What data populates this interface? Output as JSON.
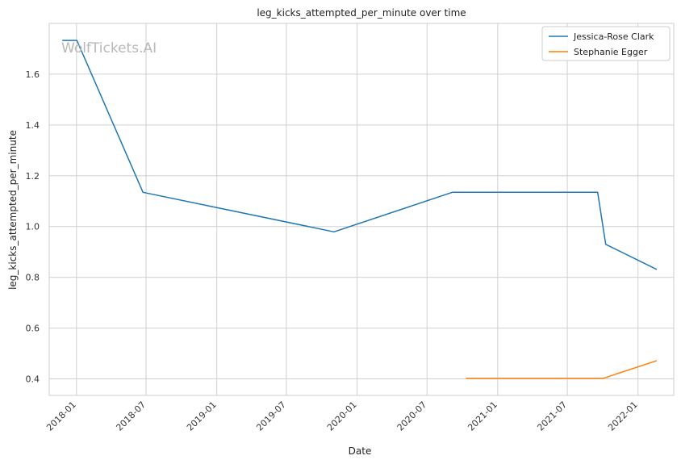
{
  "chart_data": {
    "type": "line",
    "title": "leg_kicks_attempted_per_minute over time",
    "xlabel": "Date",
    "ylabel": "leg_kicks_attempted_per_minute",
    "watermark": "WolfTickets.AI",
    "x_ticks": [
      "2018-01",
      "2018-07",
      "2019-01",
      "2019-07",
      "2020-01",
      "2020-07",
      "2021-01",
      "2021-07",
      "2022-01"
    ],
    "y_ticks": [
      "0.4",
      "0.6",
      "0.8",
      "1.0",
      "1.2",
      "1.4",
      "1.6"
    ],
    "xlim": [
      "2017-10-22",
      "2022-04-04"
    ],
    "ylim": [
      0.335,
      1.8
    ],
    "grid": true,
    "legend_position": "top-right",
    "series": [
      {
        "name": "Jessica-Rose Clark",
        "color": "#1f77b4",
        "points": [
          {
            "x": "2017-11-25",
            "y": 1.733
          },
          {
            "x": "2018-01-02",
            "y": 1.733
          },
          {
            "x": "2018-06-23",
            "y": 1.135
          },
          {
            "x": "2019-11-02",
            "y": 0.979
          },
          {
            "x": "2020-09-05",
            "y": 1.135
          },
          {
            "x": "2021-09-18",
            "y": 1.135
          },
          {
            "x": "2021-10-09",
            "y": 0.93
          },
          {
            "x": "2022-02-19",
            "y": 0.831
          }
        ]
      },
      {
        "name": "Stephanie Egger",
        "color": "#ff7f0e",
        "points": [
          {
            "x": "2020-10-10",
            "y": 0.402
          },
          {
            "x": "2021-10-02",
            "y": 0.402
          },
          {
            "x": "2022-02-19",
            "y": 0.472
          }
        ]
      }
    ]
  }
}
